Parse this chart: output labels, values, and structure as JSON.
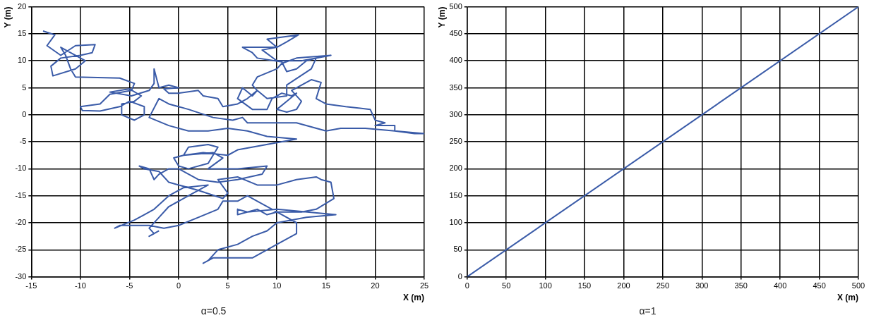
{
  "chart_data": [
    {
      "type": "line",
      "title": "α=0.5",
      "xlabel": "X (m)",
      "ylabel": "Y (m)",
      "xlim": [
        -15,
        25
      ],
      "xticks": [
        -15,
        -10,
        -5,
        0,
        5,
        10,
        15,
        20,
        25
      ],
      "ylim": [
        -30,
        20
      ],
      "yticks": [
        -30,
        -25,
        -20,
        -15,
        -10,
        -5,
        0,
        5,
        10,
        15,
        20
      ],
      "grid": true,
      "legend": false,
      "marker": "none",
      "line_style": "solid",
      "series": [
        {
          "color": "#3a5ba8",
          "x": [
            -13.8,
            -12.6,
            -13.4,
            -12,
            -10.5,
            -8.5,
            -8.8,
            -10,
            -12,
            -13,
            -12.8,
            -10.5,
            -9.5,
            -12,
            -11.5,
            -11,
            -10.5,
            -6,
            -4.5,
            -4.8,
            -7,
            -8,
            -10,
            -9.8,
            -8,
            -6,
            -5,
            -3.5,
            -3.5,
            -4.5,
            -5.8,
            -5.8,
            -4.5,
            -3.8,
            -5,
            -7,
            -4.8,
            -3,
            -2.5,
            -2.5,
            -2,
            -1,
            0,
            -1.5,
            -1,
            0,
            2,
            2.5,
            4,
            4.5,
            6,
            7,
            8,
            7.5,
            8,
            10,
            10.5,
            12,
            15.5,
            12.5,
            10,
            8.5,
            10,
            9,
            11,
            12.2,
            11,
            10,
            8,
            6.5,
            7.5,
            8,
            10.5,
            11,
            12,
            13,
            14,
            13.5,
            11,
            11,
            9,
            8,
            7.5,
            6.5,
            6,
            7.5,
            9,
            9.5,
            10.5,
            11.5,
            12,
            11,
            10,
            11,
            12,
            12.5,
            11.5,
            13.5,
            14.5,
            14,
            15,
            17,
            19.5,
            20,
            21,
            20,
            22,
            22,
            24,
            25,
            22,
            19,
            16.5,
            15,
            12,
            9,
            7,
            6.5,
            5.5,
            3.5,
            1,
            -1,
            -2,
            -3,
            -1,
            1,
            3,
            5,
            7,
            9,
            12,
            6,
            5,
            2.5,
            0.5,
            1,
            3,
            4,
            3,
            1,
            0,
            -0.5,
            0.5,
            3.5,
            4.5,
            3,
            6,
            9,
            8.5,
            6,
            4,
            2,
            0,
            -1,
            -2,
            -2.5,
            -3,
            -4,
            -3.5,
            -2,
            -1,
            2,
            4.5,
            5,
            4,
            6,
            8,
            10,
            12,
            14,
            14.5,
            15.5,
            15.8,
            14,
            12.5,
            10,
            9,
            8,
            7,
            6,
            6,
            7,
            10,
            16,
            13,
            10,
            9,
            7.5,
            6,
            4,
            3,
            2.5,
            3.5,
            5,
            7.5,
            10,
            12,
            12,
            10,
            8,
            7,
            6,
            4.5,
            4,
            2,
            0,
            -1.5,
            -3,
            -5,
            -6,
            -6.5,
            -4.5,
            -3.5,
            -2.5,
            -1,
            0.5,
            3,
            1,
            -1,
            -2,
            -3,
            -2.5,
            -3,
            -2
          ],
          "values": [
            15.5,
            14.8,
            12.8,
            11,
            12.8,
            13,
            11.5,
            11,
            10.5,
            9,
            7.2,
            8.5,
            10,
            12.5,
            11,
            8.5,
            7,
            6.8,
            5.8,
            4.5,
            3.8,
            2,
            1.5,
            0.8,
            0.7,
            1.5,
            2.5,
            1.5,
            0,
            -1,
            0,
            2,
            2.5,
            3.5,
            4.8,
            4.2,
            3.5,
            4.5,
            5.8,
            8.5,
            5,
            5.5,
            5,
            4.8,
            4,
            4,
            4.5,
            3.5,
            3,
            1.5,
            2,
            3,
            4.5,
            5.5,
            7,
            8.5,
            9.5,
            10.5,
            11,
            10,
            10,
            12,
            12.5,
            14,
            14.5,
            14.8,
            13.5,
            12.5,
            12.5,
            12.5,
            11.5,
            10.5,
            9.8,
            8,
            8.5,
            10,
            10.5,
            8.5,
            5.5,
            3.5,
            3,
            4.5,
            3.5,
            5,
            3,
            1,
            1,
            3,
            4,
            3.5,
            4,
            2.5,
            1,
            0.5,
            1,
            2.5,
            4.5,
            6.5,
            6,
            3,
            2,
            1.5,
            1,
            -1,
            -1.5,
            -2,
            -2,
            -3,
            -3.5,
            -3.5,
            -3,
            -2.5,
            -2.5,
            -3,
            -1.5,
            -1.5,
            -1.5,
            -0.5,
            -1,
            -0.5,
            1,
            2,
            3,
            -0.5,
            -2,
            -3,
            -3,
            -2.5,
            -3,
            -4,
            -4.5,
            -6.5,
            -7.5,
            -7,
            -7.5,
            -6,
            -5.5,
            -6,
            -9,
            -10,
            -9.5,
            -8,
            -7.5,
            -7,
            -8,
            -10,
            -10,
            -9.5,
            -11,
            -12,
            -12.5,
            -12,
            -10,
            -10,
            -11,
            -12,
            -10,
            -9.5,
            -10,
            -10.5,
            -12.5,
            -14,
            -15.5,
            -14.5,
            -12,
            -11.5,
            -13,
            -13,
            -12,
            -11.5,
            -12,
            -12.5,
            -15.5,
            -17.5,
            -18,
            -18,
            -18.5,
            -17.5,
            -18,
            -17.5,
            -18.5,
            -18,
            -17.5,
            -18.5,
            -19,
            -20,
            -21.5,
            -22.5,
            -24,
            -25,
            -27,
            -27.5,
            -26.5,
            -26.5,
            -26.5,
            -24,
            -22,
            -20,
            -18,
            -16,
            -15,
            -16,
            -16,
            -17.5,
            -19,
            -20.5,
            -21,
            -20.5,
            -20.5,
            -20.5,
            -21,
            -19.5,
            -18.5,
            -17.5,
            -15,
            -13.5,
            -13,
            -15,
            -17,
            -19,
            -21,
            -22,
            -22.5,
            -21.5
          ]
        }
      ]
    },
    {
      "type": "line",
      "title": "α=1",
      "xlabel": "X (m)",
      "ylabel": "Y (m)",
      "xlim": [
        0,
        500
      ],
      "xticks": [
        0,
        50,
        100,
        150,
        200,
        250,
        300,
        350,
        400,
        450,
        500
      ],
      "ylim": [
        0,
        500
      ],
      "yticks": [
        0,
        50,
        100,
        150,
        200,
        250,
        300,
        350,
        400,
        450,
        500
      ],
      "grid": true,
      "legend": false,
      "marker": "none",
      "line_style": "solid",
      "series": [
        {
          "color": "#3a5ba8",
          "x": [
            0,
            500
          ],
          "values": [
            0,
            500
          ]
        }
      ]
    }
  ]
}
